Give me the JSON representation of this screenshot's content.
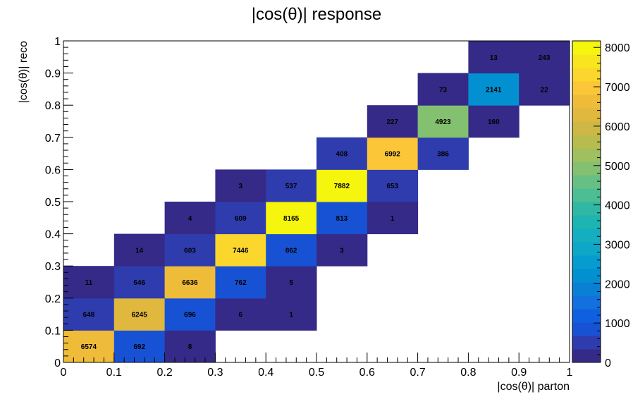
{
  "chart_data": {
    "type": "heatmap",
    "title": "|cos(θ)| response",
    "xlabel": "|cos(θ)| parton",
    "ylabel": "|cos(θ)| reco",
    "xlim": [
      0,
      1
    ],
    "ylim": [
      0,
      1
    ],
    "x_bins": [
      0,
      0.1,
      0.2,
      0.3,
      0.4,
      0.5,
      0.6,
      0.7,
      0.8,
      0.9,
      1.0
    ],
    "y_bins": [
      0,
      0.1,
      0.2,
      0.3,
      0.4,
      0.5,
      0.6,
      0.7,
      0.8,
      0.9,
      1.0
    ],
    "x_tick_labels": [
      "0",
      "0.1",
      "0.2",
      "0.3",
      "0.4",
      "0.5",
      "0.6",
      "0.7",
      "0.8",
      "0.9",
      "1"
    ],
    "y_tick_labels": [
      "0",
      "0.1",
      "0.2",
      "0.3",
      "0.4",
      "0.5",
      "0.6",
      "0.7",
      "0.8",
      "0.9",
      "1"
    ],
    "colorbar": {
      "min": 0,
      "max": 8165,
      "tick_values": [
        0,
        1000,
        2000,
        3000,
        4000,
        5000,
        6000,
        7000,
        8000
      ],
      "tick_labels": [
        "0",
        "1000",
        "2000",
        "3000",
        "4000",
        "5000",
        "6000",
        "7000",
        "8000"
      ],
      "palette": [
        "#352a87",
        "#2e3cae",
        "#1852d4",
        "#0f60e0",
        "#1470dc",
        "#0a80d5",
        "#0290d1",
        "#079ccf",
        "#0ea7c8",
        "#13aebf",
        "#1db4b1",
        "#31b8a4",
        "#4dbd94",
        "#67c083",
        "#83c06f",
        "#a0bf5e",
        "#b8bc4e",
        "#cdb845",
        "#dfb83d",
        "#efbc3a",
        "#fbc638",
        "#fbd62c",
        "#f7e61e",
        "#f5f50e"
      ]
    },
    "cells": [
      {
        "x": 0,
        "y": 0,
        "value": 6574
      },
      {
        "x": 1,
        "y": 0,
        "value": 692
      },
      {
        "x": 2,
        "y": 0,
        "value": 8
      },
      {
        "x": 0,
        "y": 1,
        "value": 648
      },
      {
        "x": 1,
        "y": 1,
        "value": 6245
      },
      {
        "x": 2,
        "y": 1,
        "value": 696
      },
      {
        "x": 3,
        "y": 1,
        "value": 6
      },
      {
        "x": 4,
        "y": 1,
        "value": 1
      },
      {
        "x": 0,
        "y": 2,
        "value": 11
      },
      {
        "x": 1,
        "y": 2,
        "value": 646
      },
      {
        "x": 2,
        "y": 2,
        "value": 6636
      },
      {
        "x": 3,
        "y": 2,
        "value": 762
      },
      {
        "x": 4,
        "y": 2,
        "value": 5
      },
      {
        "x": 1,
        "y": 3,
        "value": 14
      },
      {
        "x": 2,
        "y": 3,
        "value": 603
      },
      {
        "x": 3,
        "y": 3,
        "value": 7446
      },
      {
        "x": 4,
        "y": 3,
        "value": 862
      },
      {
        "x": 5,
        "y": 3,
        "value": 3
      },
      {
        "x": 2,
        "y": 4,
        "value": 4
      },
      {
        "x": 3,
        "y": 4,
        "value": 609
      },
      {
        "x": 4,
        "y": 4,
        "value": 8165
      },
      {
        "x": 5,
        "y": 4,
        "value": 813
      },
      {
        "x": 6,
        "y": 4,
        "value": 1
      },
      {
        "x": 3,
        "y": 5,
        "value": 3
      },
      {
        "x": 4,
        "y": 5,
        "value": 537
      },
      {
        "x": 5,
        "y": 5,
        "value": 7882
      },
      {
        "x": 6,
        "y": 5,
        "value": 653
      },
      {
        "x": 5,
        "y": 6,
        "value": 408
      },
      {
        "x": 6,
        "y": 6,
        "value": 6992
      },
      {
        "x": 7,
        "y": 6,
        "value": 386
      },
      {
        "x": 6,
        "y": 7,
        "value": 227
      },
      {
        "x": 7,
        "y": 7,
        "value": 4923
      },
      {
        "x": 8,
        "y": 7,
        "value": 160
      },
      {
        "x": 7,
        "y": 8,
        "value": 73
      },
      {
        "x": 8,
        "y": 8,
        "value": 2141
      },
      {
        "x": 9,
        "y": 8,
        "value": 22
      },
      {
        "x": 8,
        "y": 9,
        "value": 13
      },
      {
        "x": 9,
        "y": 9,
        "value": 243
      }
    ]
  }
}
